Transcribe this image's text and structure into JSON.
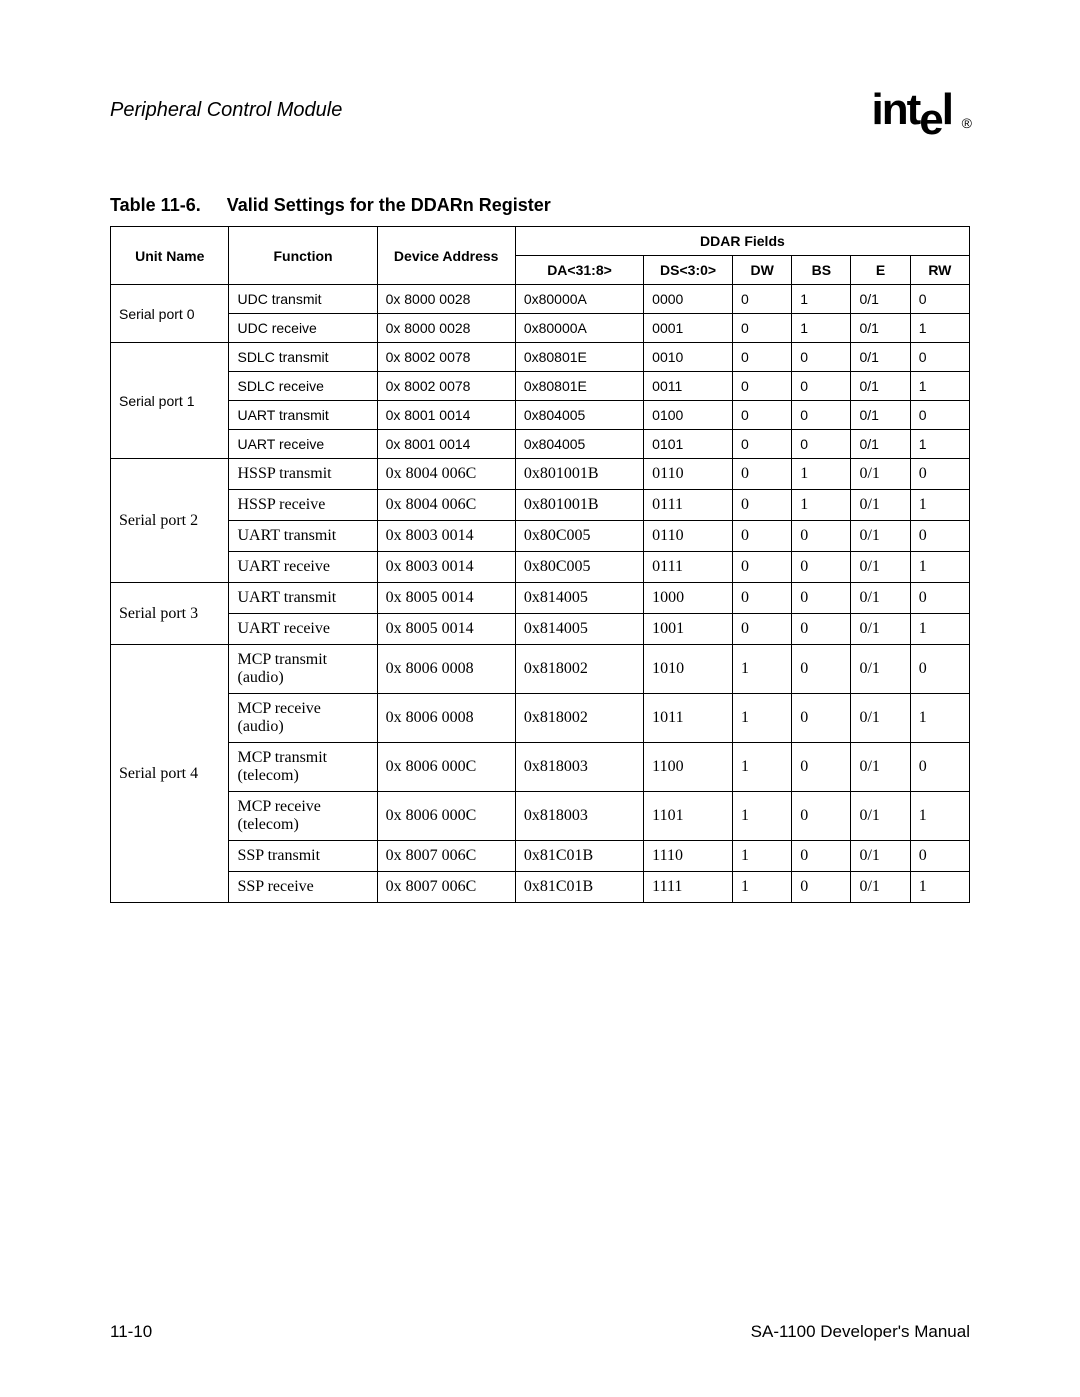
{
  "header": {
    "section_title": "Peripheral Control Module",
    "logo_text_1": "int",
    "logo_text_drop": "e",
    "logo_text_2": "l",
    "logo_reg": "®"
  },
  "table": {
    "caption_number": "Table 11-6.",
    "caption_title": "Valid Settings for the DDARn Register",
    "columns": {
      "unit_name": "Unit Name",
      "function": "Function",
      "device_address": "Device Address",
      "ddar_fields": "DDAR Fields",
      "da": "DA<31:8>",
      "ds": "DS<3:0>",
      "dw": "DW",
      "bs": "BS",
      "e": "E",
      "rw": "RW"
    },
    "groups": [
      {
        "unit": "Serial port 0",
        "font": "arial",
        "rows": [
          {
            "func": "UDC  transmit",
            "devadd": "0x 8000 0028",
            "da": "0x80000A",
            "ds": "0000",
            "dw": "0",
            "bs": "1",
            "e": "0/1",
            "rw": "0"
          },
          {
            "func": "UDC receive",
            "devadd": "0x 8000 0028",
            "da": "0x80000A",
            "ds": "0001",
            "dw": "0",
            "bs": "1",
            "e": "0/1",
            "rw": "1"
          }
        ]
      },
      {
        "unit": "Serial port 1",
        "font": "arial",
        "rows": [
          {
            "func": "SDLC transmit",
            "devadd": "0x 8002 0078",
            "da": "0x80801E",
            "ds": "0010",
            "dw": "0",
            "bs": "0",
            "e": "0/1",
            "rw": "0"
          },
          {
            "func": "SDLC receive",
            "devadd": "0x 8002 0078",
            "da": "0x80801E",
            "ds": "0011",
            "dw": "0",
            "bs": "0",
            "e": "0/1",
            "rw": "1"
          },
          {
            "func": "UART transmit",
            "devadd": "0x 8001 0014",
            "da": "0x804005",
            "ds": "0100",
            "dw": "0",
            "bs": "0",
            "e": "0/1",
            "rw": "0"
          },
          {
            "func": "UART receive",
            "devadd": "0x 8001 0014",
            "da": "0x804005",
            "ds": "0101",
            "dw": "0",
            "bs": "0",
            "e": "0/1",
            "rw": "1"
          }
        ]
      },
      {
        "unit": "Serial port 2",
        "font": "times",
        "rows": [
          {
            "func": "HSSP transmit",
            "devadd": "0x 8004 006C",
            "da": "0x801001B",
            "ds": "0110",
            "dw": "0",
            "bs": "1",
            "e": "0/1",
            "rw": "0"
          },
          {
            "func": "HSSP receive",
            "devadd": "0x 8004 006C",
            "da": "0x801001B",
            "ds": "0111",
            "dw": "0",
            "bs": "1",
            "e": "0/1",
            "rw": "1"
          },
          {
            "func": "UART transmit",
            "devadd": "0x 8003 0014",
            "da": "0x80C005",
            "ds": "0110",
            "dw": "0",
            "bs": "0",
            "e": "0/1",
            "rw": "0"
          },
          {
            "func": "UART receive",
            "devadd": "0x 8003 0014",
            "da": "0x80C005",
            "ds": "0111",
            "dw": "0",
            "bs": "0",
            "e": "0/1",
            "rw": "1"
          }
        ]
      },
      {
        "unit": "Serial port 3",
        "font": "times",
        "rows": [
          {
            "func": "UART  transmit",
            "devadd": "0x 8005 0014",
            "da": "0x814005",
            "ds": "1000",
            "dw": "0",
            "bs": "0",
            "e": "0/1",
            "rw": "0"
          },
          {
            "func": "UART receive",
            "devadd": "0x 8005 0014",
            "da": "0x814005",
            "ds": "1001",
            "dw": "0",
            "bs": "0",
            "e": "0/1",
            "rw": "1"
          }
        ]
      },
      {
        "unit": "Serial port 4",
        "font": "times",
        "rows": [
          {
            "func": "MCP  transmit (audio)",
            "devadd": "0x 8006 0008",
            "da": "0x818002",
            "ds": "1010",
            "dw": "1",
            "bs": "0",
            "e": "0/1",
            "rw": "0"
          },
          {
            "func": "MCP receive (audio)",
            "devadd": "0x 8006 0008",
            "da": "0x818002",
            "ds": "1011",
            "dw": "1",
            "bs": "0",
            "e": "0/1",
            "rw": "1"
          },
          {
            "func": "MCP transmit (telecom)",
            "devadd": "0x 8006 000C",
            "da": "0x818003",
            "ds": "1100",
            "dw": "1",
            "bs": "0",
            "e": "0/1",
            "rw": "0"
          },
          {
            "func": "MCP receive (telecom)",
            "devadd": "0x 8006 000C",
            "da": "0x818003",
            "ds": "1101",
            "dw": "1",
            "bs": "0",
            "e": "0/1",
            "rw": "1"
          },
          {
            "func": "SSP transmit",
            "devadd": "0x 8007 006C",
            "da": "0x81C01B",
            "ds": "1110",
            "dw": "1",
            "bs": "0",
            "e": "0/1",
            "rw": "0"
          },
          {
            "func": "SSP receive",
            "devadd": "0x 8007 006C",
            "da": "0x81C01B",
            "ds": "1111",
            "dw": "1",
            "bs": "0",
            "e": "0/1",
            "rw": "1"
          }
        ]
      }
    ]
  },
  "footer": {
    "page_number": "11-10",
    "manual_title": "SA-1100  Developer's Manual"
  },
  "style": {
    "background_color": "#ffffff",
    "text_color": "#000000",
    "border_color": "#000000",
    "header_font": "Arial",
    "body_font_a": "Arial",
    "body_font_b": "Times New Roman",
    "caption_fontsize": 18,
    "header_fontsize": 14,
    "cell_fontsize_arial": 14,
    "cell_fontsize_times": 16
  }
}
